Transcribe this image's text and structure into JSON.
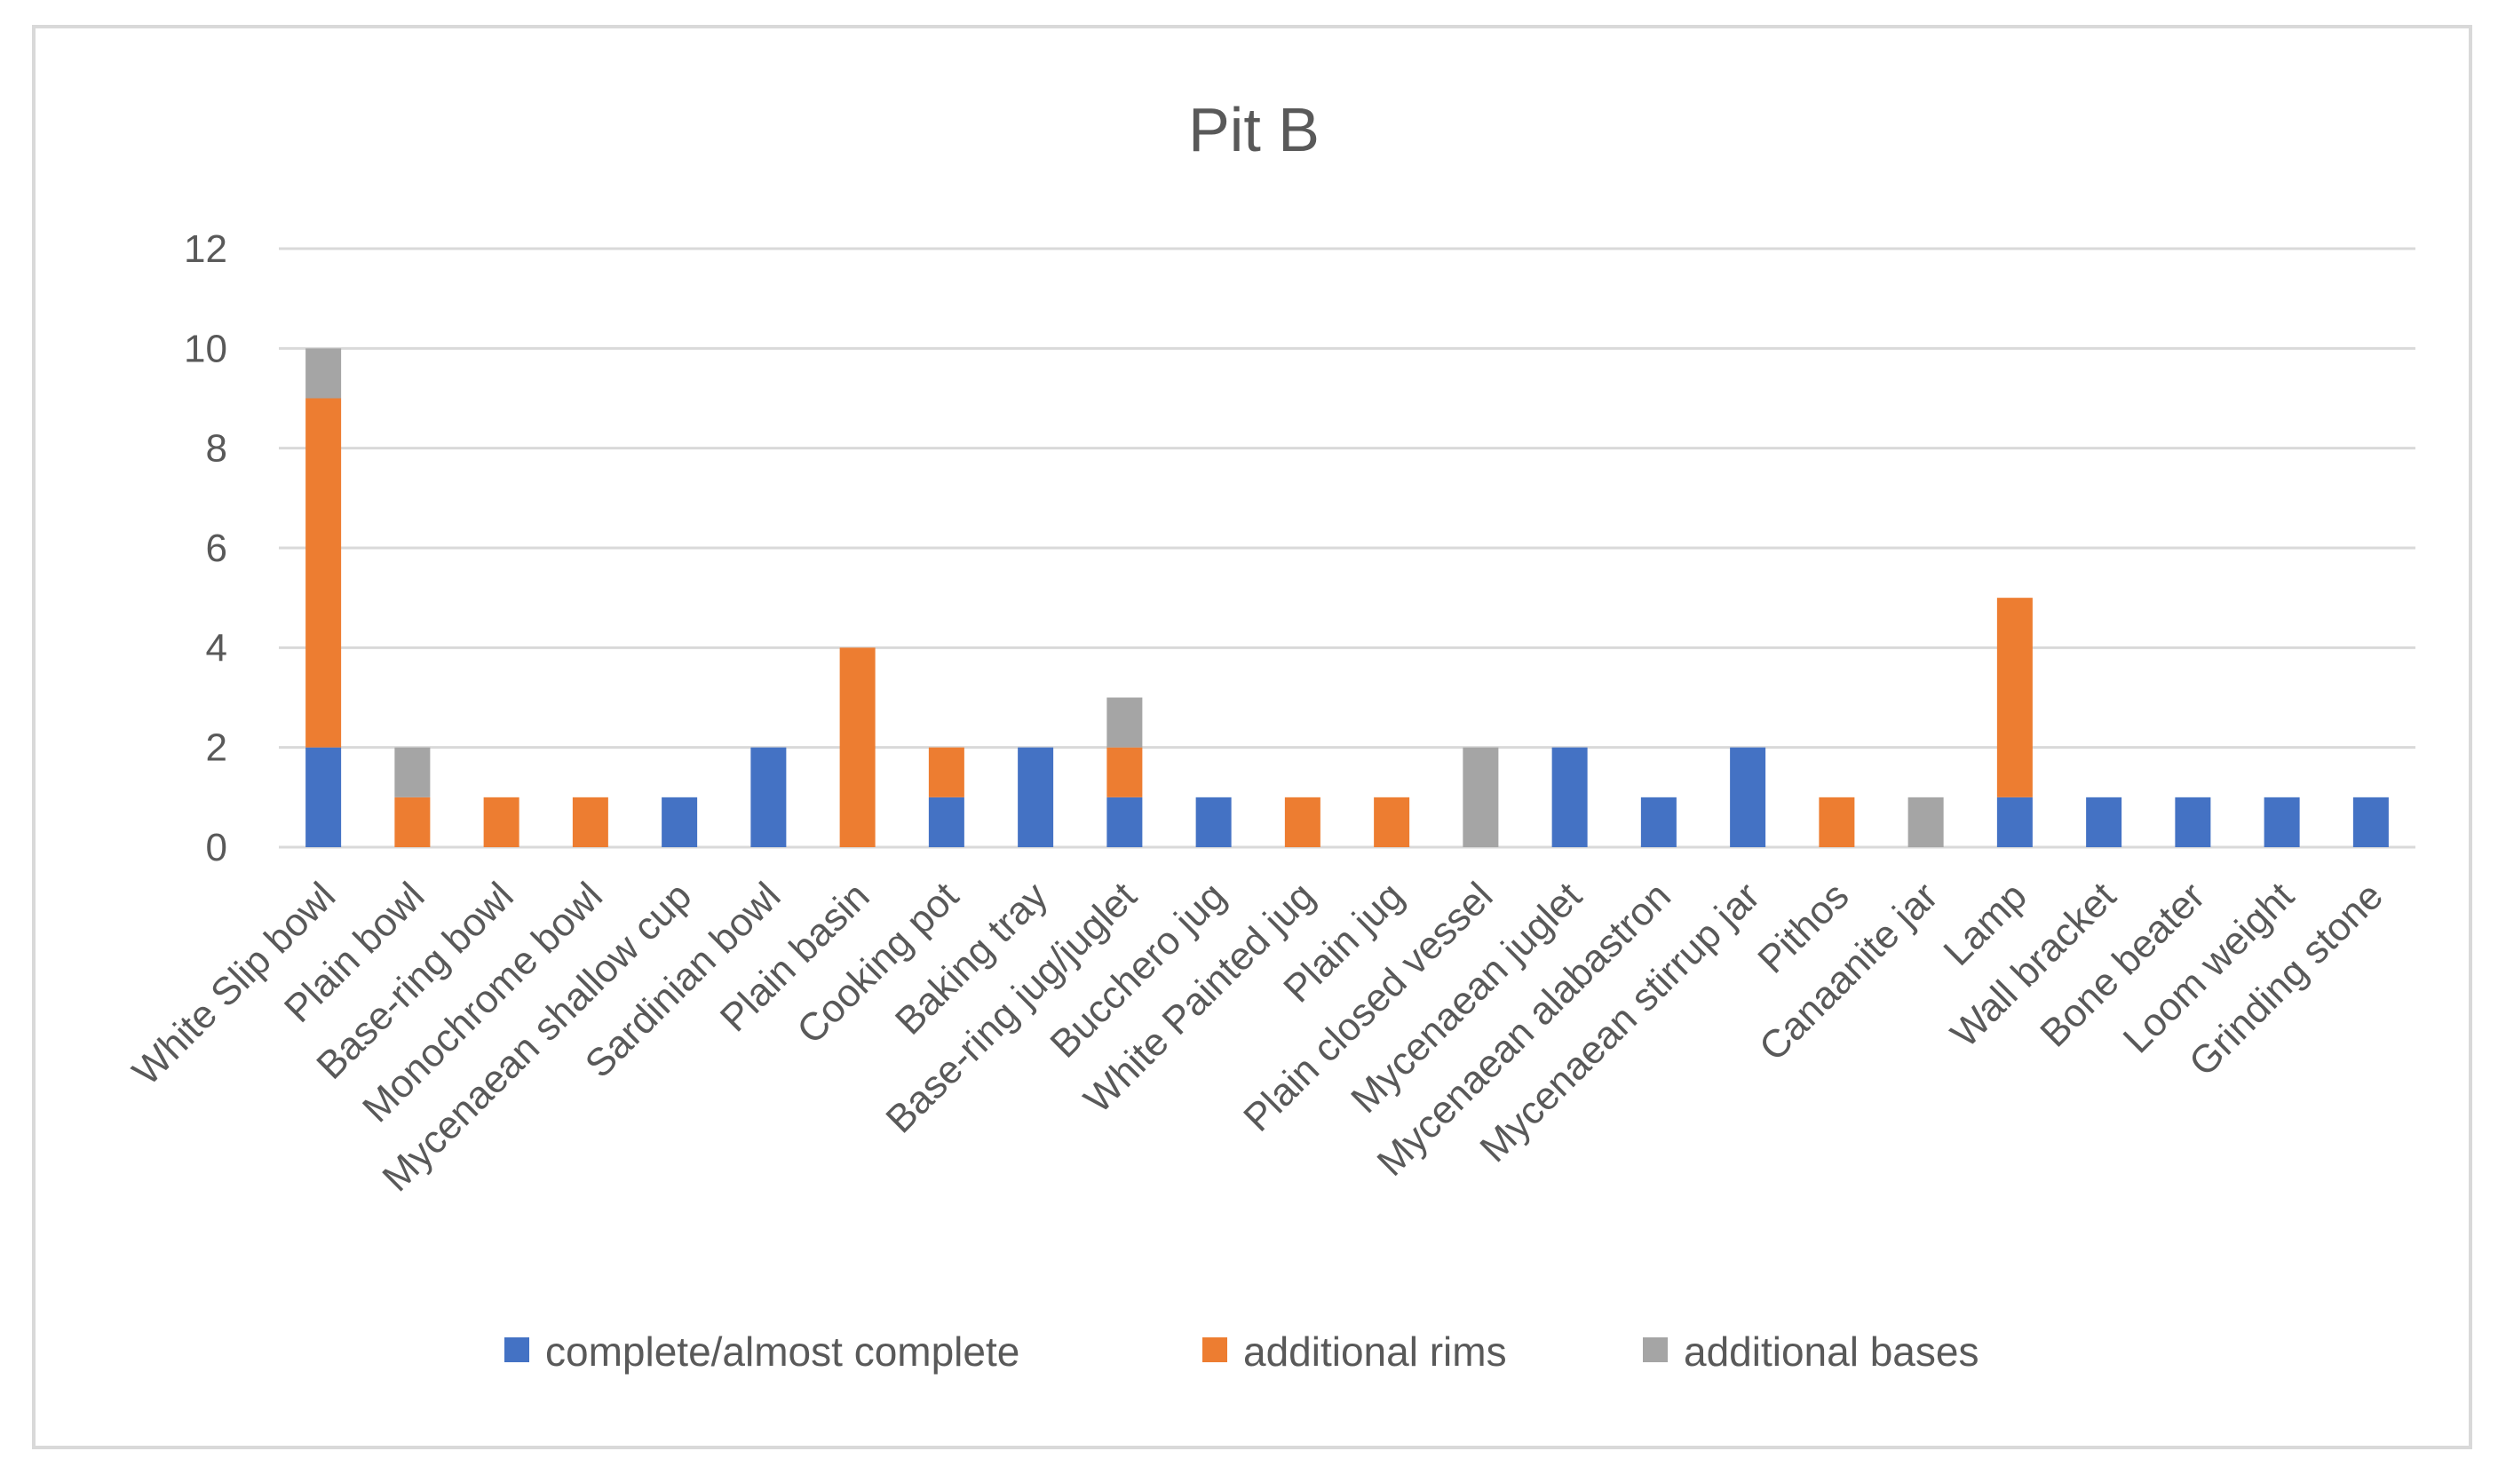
{
  "chart_data": {
    "type": "bar",
    "stacked": true,
    "title": "Pit B",
    "xlabel": "",
    "ylabel": "",
    "ylim": [
      0,
      12
    ],
    "yticks": [
      0,
      2,
      4,
      6,
      8,
      10,
      12
    ],
    "grid": true,
    "legend_position": "bottom",
    "categories": [
      "White Slip bowl",
      "Plain bowl",
      "Base-ring bowl",
      "Monochrome bowl",
      "Mycenaean shallow cup",
      "Sardinian bowl",
      "Plain basin",
      "Cooking pot",
      "Baking tray",
      "Base-ring jug/juglet",
      "Bucchero jug",
      "White Painted jug",
      "Plain jug",
      "Plain closed vessel",
      "Mycenaean juglet",
      "Mycenaean alabastron",
      "Mycenaean stirrup jar",
      "Pithos",
      "Canaanite jar",
      "Lamp",
      "Wall bracket",
      "Bone beater",
      "Loom weight",
      "Grinding stone"
    ],
    "series": [
      {
        "name": "complete/almost complete",
        "color": "#4472c4",
        "values": [
          2,
          0,
          0,
          0,
          1,
          2,
          0,
          1,
          2,
          1,
          1,
          0,
          0,
          0,
          2,
          1,
          2,
          0,
          0,
          1,
          1,
          1,
          1,
          1
        ]
      },
      {
        "name": "additional rims",
        "color": "#ed7d31",
        "values": [
          7,
          1,
          1,
          1,
          0,
          0,
          4,
          1,
          0,
          1,
          0,
          1,
          1,
          0,
          0,
          0,
          0,
          1,
          0,
          4,
          0,
          0,
          0,
          0
        ]
      },
      {
        "name": "additional bases",
        "color": "#a5a5a5",
        "values": [
          1,
          1,
          0,
          0,
          0,
          0,
          0,
          0,
          0,
          1,
          0,
          0,
          0,
          2,
          0,
          0,
          0,
          0,
          1,
          0,
          0,
          0,
          0,
          0
        ]
      }
    ]
  }
}
